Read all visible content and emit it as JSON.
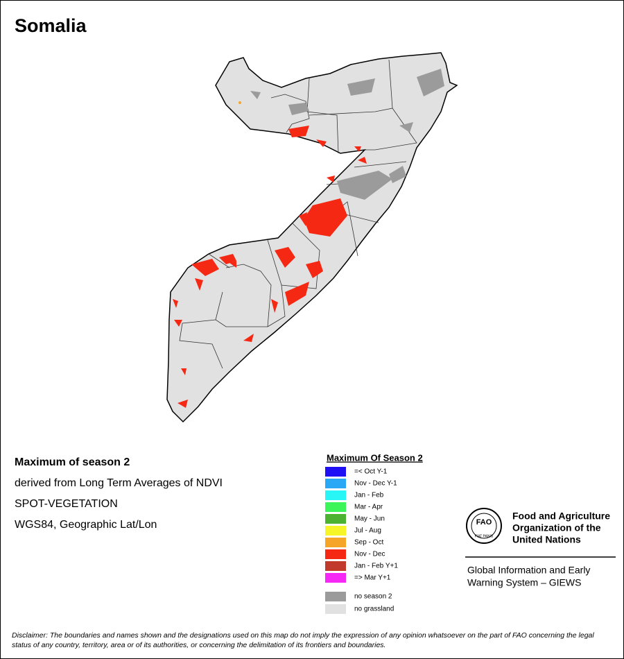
{
  "title": "Somalia",
  "info": {
    "lines": [
      "Maximum of season 2",
      "derived from Long Term Averages of NDVI",
      "SPOT-VEGETATION",
      "WGS84, Geographic Lat/Lon"
    ]
  },
  "legend": {
    "title": "Maximum Of Season 2",
    "items": [
      {
        "label": "=< Oct Y-1",
        "color": "#1f0ff5"
      },
      {
        "label": "Nov - Dec Y-1",
        "color": "#28a8f5"
      },
      {
        "label": "Jan - Feb",
        "color": "#28f5f5"
      },
      {
        "label": "Mar - Apr",
        "color": "#3cf55a"
      },
      {
        "label": "May - Jun",
        "color": "#4cb232"
      },
      {
        "label": "Jul - Aug",
        "color": "#f5f528"
      },
      {
        "label": "Sep - Oct",
        "color": "#f5a528"
      },
      {
        "label": "Nov - Dec",
        "color": "#f52814"
      },
      {
        "label": "Jan - Feb Y+1",
        "color": "#c0392b"
      },
      {
        "label": "=> Mar Y+1",
        "color": "#f528f5"
      }
    ],
    "extra": [
      {
        "label": "no season 2",
        "color": "#9b9b9b"
      },
      {
        "label": "no grassland",
        "color": "#e1e1e1"
      }
    ]
  },
  "logo": {
    "emblem": "FAO",
    "motto": "FIAT PANIS",
    "org": [
      "Food and Agriculture",
      "Organization of the",
      "United Nations"
    ],
    "system": [
      "Global Information and Early",
      "Warning System – GIEWS"
    ]
  },
  "disclaimer": "Disclaimer: The boundaries and names shown and the designations used on this map do not imply the expression of any opinion whatsoever on the part of FAO concerning the legal status of any country, territory, area or of its authorities, or concerning the delimitation of its frontiers and boundaries."
}
